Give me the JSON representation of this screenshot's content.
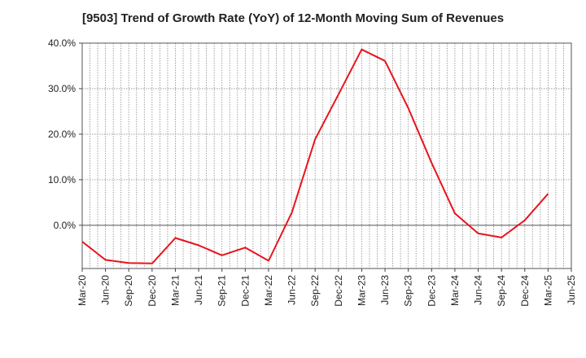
{
  "chart_data": {
    "type": "line",
    "title": "[9503]  Trend of Growth Rate (YoY) of 12-Month Moving Sum of Revenues",
    "xlabel": "",
    "ylabel": "",
    "x": [
      "Mar-20",
      "Jun-20",
      "Sep-20",
      "Dec-20",
      "Mar-21",
      "Jun-21",
      "Sep-21",
      "Dec-21",
      "Mar-22",
      "Jun-22",
      "Sep-22",
      "Dec-22",
      "Mar-23",
      "Jun-23",
      "Sep-23",
      "Dec-23",
      "Mar-24",
      "Jun-24",
      "Sep-24",
      "Dec-24",
      "Mar-25",
      "Jun-25"
    ],
    "y_ticks": [
      0,
      10,
      20,
      30,
      40
    ],
    "y_tick_labels": [
      "0.0%",
      "10.0%",
      "20.0%",
      "30.0%",
      "40.0%"
    ],
    "ylim": [
      -9.5,
      40
    ],
    "grid": true,
    "series": [
      {
        "color": "#e8141c",
        "values": [
          -3.6,
          -7.6,
          -8.3,
          -8.4,
          -2.8,
          -4.4,
          -6.6,
          -4.9,
          -7.8,
          2.8,
          18.9,
          28.7,
          38.6,
          36.1,
          25.7,
          13.7,
          2.6,
          -1.8,
          -2.7,
          1.1,
          6.9,
          null
        ]
      }
    ]
  }
}
